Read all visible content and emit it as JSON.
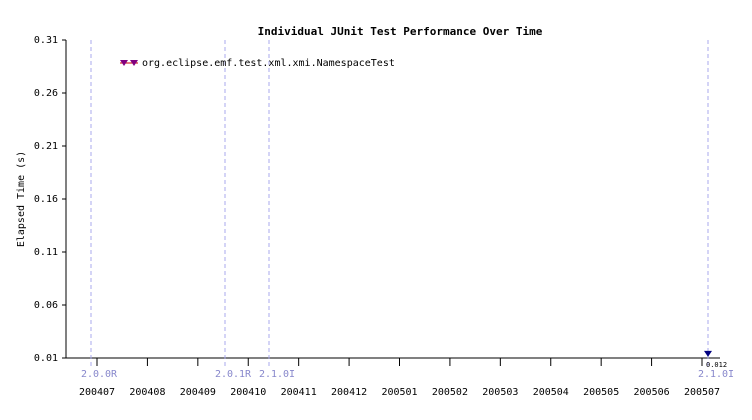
{
  "chart_data": {
    "type": "line",
    "title": "Individual JUnit Test Performance Over Time",
    "y_label": "Elapsed Time (s)",
    "categories": [
      "200407",
      "200408",
      "200409",
      "200410",
      "200411",
      "200412",
      "200501",
      "200502",
      "200503",
      "200504",
      "200505",
      "200506",
      "200507"
    ],
    "series": [
      {
        "name": "org.eclipse.emf.test.xml.xmi.NamespaceTest",
        "color": "#000080",
        "values": [
          null,
          null,
          null,
          null,
          null,
          null,
          null,
          null,
          null,
          null,
          null,
          null,
          0.012
        ],
        "value_labels": [
          null,
          null,
          null,
          null,
          null,
          null,
          null,
          null,
          null,
          null,
          null,
          null,
          "0.012"
        ]
      }
    ],
    "annotations": [
      {
        "label": "2.0.0R"
      },
      {
        "label": "2.0.1R"
      },
      {
        "label": "2.1.0I"
      },
      {
        "label": "2.1.0I"
      }
    ],
    "ylim": [
      0.01,
      0.31
    ],
    "yticks": [
      0.01,
      0.06,
      0.11,
      0.16,
      0.21,
      0.26,
      0.31
    ]
  }
}
